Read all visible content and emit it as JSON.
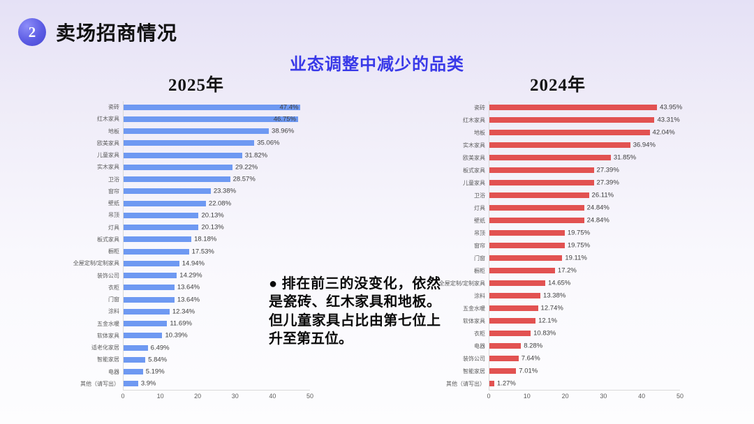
{
  "header": {
    "badge": "2",
    "title": "卖场招商情况"
  },
  "subtitle": "业态调整中减少的品类",
  "note": {
    "text": "● 排在前三的没变化，依然是瓷砖、红木家具和地板。但儿童家具占比由第七位上升至第五位。"
  },
  "colors": {
    "subtitle_accent": "#3939e8",
    "badge_fill": "#5c5ce4",
    "bar_2025": "#6e99f2",
    "bar_2024": "#e25251",
    "axis_line": "#d9d9d9"
  },
  "chart_data": [
    {
      "type": "bar",
      "orientation": "horizontal",
      "title": "2025年",
      "bar_color": "#6e99f2",
      "xlim": [
        0,
        50
      ],
      "x_ticks": [
        0,
        10,
        20,
        30,
        40,
        50
      ],
      "value_suffix": "%",
      "grid": false,
      "legend": false,
      "categories": [
        "瓷砖",
        "红木家具",
        "地板",
        "欧美家具",
        "儿童家具",
        "实木家具",
        "卫浴",
        "窗帘",
        "壁纸",
        "吊顶",
        "灯具",
        "板式家具",
        "橱柜",
        "全屋定制/定制家具",
        "装饰公司",
        "衣柜",
        "门窗",
        "涂料",
        "五金水暖",
        "软体家具",
        "适老化家居",
        "智能家居",
        "电器",
        "其他（请写出）"
      ],
      "values": [
        47.4,
        46.75,
        38.96,
        35.06,
        31.82,
        29.22,
        28.57,
        23.38,
        22.08,
        20.13,
        20.13,
        18.18,
        17.53,
        14.94,
        14.29,
        13.64,
        13.64,
        12.34,
        11.69,
        10.39,
        6.49,
        5.84,
        5.19,
        3.9
      ]
    },
    {
      "type": "bar",
      "orientation": "horizontal",
      "title": "2024年",
      "bar_color": "#e25251",
      "xlim": [
        0,
        50
      ],
      "x_ticks": [
        0,
        10,
        20,
        30,
        40,
        50
      ],
      "value_suffix": "%",
      "grid": false,
      "legend": false,
      "categories": [
        "瓷砖",
        "红木家具",
        "地板",
        "实木家具",
        "欧美家具",
        "板式家具",
        "儿童家具",
        "卫浴",
        "灯具",
        "壁纸",
        "吊顶",
        "窗帘",
        "门窗",
        "橱柜",
        "全屋定制/定制家具",
        "涂料",
        "五金水暖",
        "软体家具",
        "衣柜",
        "电器",
        "装饰公司",
        "智能家居",
        "其他（请写出）"
      ],
      "values": [
        43.95,
        43.31,
        42.04,
        36.94,
        31.85,
        27.39,
        27.39,
        26.11,
        24.84,
        24.84,
        19.75,
        19.75,
        19.11,
        17.2,
        14.65,
        13.38,
        12.74,
        12.1,
        10.83,
        8.28,
        7.64,
        7.01,
        1.27
      ]
    }
  ]
}
